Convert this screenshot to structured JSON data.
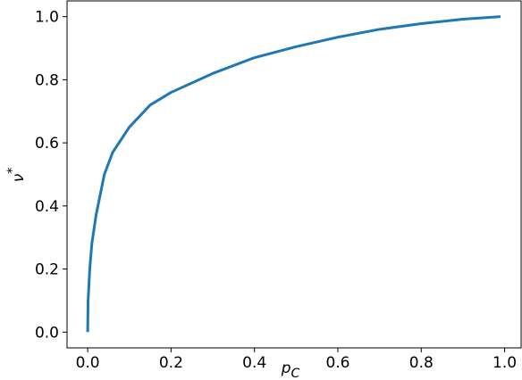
{
  "chart_data": {
    "type": "line",
    "xlabel": {
      "base": "p",
      "sub": "C"
    },
    "ylabel": {
      "base": "ν",
      "sup": "*"
    },
    "x": [
      0,
      0.001,
      0.005,
      0.01,
      0.02,
      0.04,
      0.06,
      0.1,
      0.15,
      0.2,
      0.3,
      0.4,
      0.5,
      0.6,
      0.7,
      0.8,
      0.9,
      0.99
    ],
    "series": [
      {
        "color": "#1f77b4",
        "values": [
          0,
          0.1,
          0.2,
          0.28,
          0.37,
          0.5,
          0.57,
          0.65,
          0.72,
          0.76,
          0.82,
          0.87,
          0.905,
          0.935,
          0.96,
          0.978,
          0.992,
          1.0
        ]
      }
    ],
    "xlim": [
      -0.0495,
      1.0395
    ],
    "ylim": [
      -0.05,
      1.05
    ],
    "xticks": [
      {
        "value": 0,
        "label": "0.0"
      },
      0.2,
      0.4,
      0.6,
      0.8,
      {
        "value": 1,
        "label": "1.0"
      }
    ],
    "yticks": [
      {
        "value": 0,
        "label": "0.0"
      },
      0.2,
      0.4,
      0.6,
      0.8,
      {
        "value": 1,
        "label": "1.0"
      }
    ],
    "grid": false
  }
}
